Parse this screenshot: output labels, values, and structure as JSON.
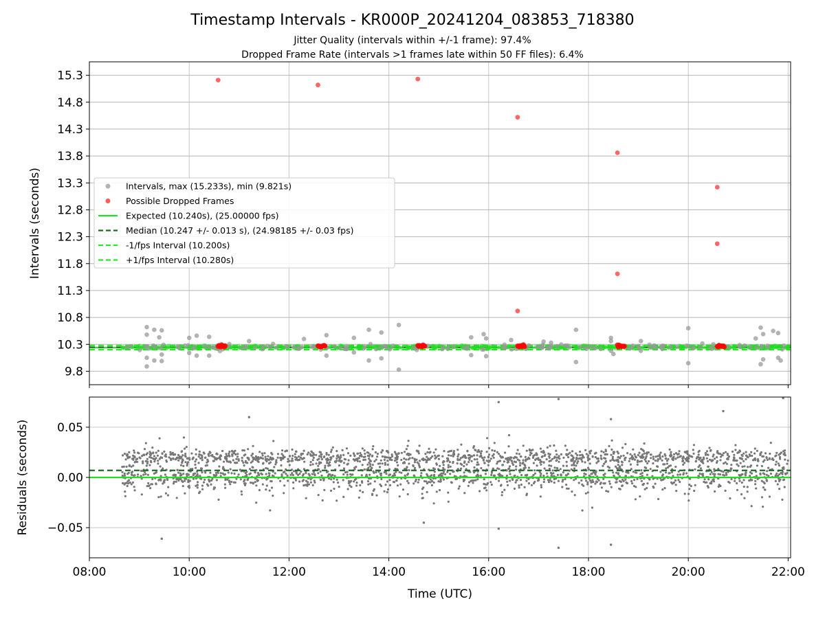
{
  "chart_data": [
    {
      "type": "scatter",
      "title": "Timestamp Intervals - KR000P_20241204_083853_718380",
      "subtitle_lines": [
        "Jitter Quality (intervals within +/-1 frame): 97.4%",
        "Dropped Frame Rate (intervals >1 frames late within 50 FF files): 6.4%"
      ],
      "xlabel": "",
      "ylabel": "Intervals (seconds)",
      "x_unit": "hours UTC",
      "xlim": [
        8.0,
        22.05
      ],
      "ylim": [
        9.55,
        15.55
      ],
      "yticks": [
        9.8,
        10.3,
        10.8,
        11.3,
        11.8,
        12.3,
        12.8,
        13.3,
        13.8,
        14.3,
        14.8,
        15.3
      ],
      "ytick_labels": [
        "9.8",
        "10.3",
        "10.8",
        "11.3",
        "11.8",
        "12.3",
        "12.8",
        "13.3",
        "13.8",
        "14.3",
        "14.8",
        "15.3"
      ],
      "grid": true,
      "legend_position": "center-left",
      "colors": {
        "intervals": "#999999",
        "dropped": "#ff3333",
        "expected": "#22dd22",
        "median": "#1a6b1a",
        "bounds": "#22ee22"
      },
      "series": [
        {
          "name": "Intervals, max (15.233s), min (9.821s)",
          "kind": "scatter",
          "x_range": [
            8.65,
            22.0
          ],
          "typical_y": 10.247,
          "outliers": [
            {
              "x": 9.15,
              "y": 10.62
            },
            {
              "x": 9.15,
              "y": 10.48
            },
            {
              "x": 9.15,
              "y": 10.05
            },
            {
              "x": 9.15,
              "y": 9.89
            },
            {
              "x": 9.3,
              "y": 10.57
            },
            {
              "x": 9.3,
              "y": 10.0
            },
            {
              "x": 9.4,
              "y": 10.43
            },
            {
              "x": 9.45,
              "y": 10.56
            },
            {
              "x": 9.45,
              "y": 10.11
            },
            {
              "x": 9.45,
              "y": 9.99
            },
            {
              "x": 10.0,
              "y": 10.42
            },
            {
              "x": 10.0,
              "y": 10.14
            },
            {
              "x": 10.15,
              "y": 10.46
            },
            {
              "x": 10.15,
              "y": 10.09
            },
            {
              "x": 10.4,
              "y": 10.44
            },
            {
              "x": 10.4,
              "y": 10.09
            },
            {
              "x": 11.2,
              "y": 10.36
            },
            {
              "x": 12.3,
              "y": 10.4
            },
            {
              "x": 12.75,
              "y": 10.47
            },
            {
              "x": 12.75,
              "y": 10.09
            },
            {
              "x": 13.3,
              "y": 10.42
            },
            {
              "x": 13.3,
              "y": 10.15
            },
            {
              "x": 13.6,
              "y": 10.57
            },
            {
              "x": 13.6,
              "y": 10.0
            },
            {
              "x": 13.85,
              "y": 10.52
            },
            {
              "x": 13.85,
              "y": 10.04
            },
            {
              "x": 14.2,
              "y": 10.66
            },
            {
              "x": 14.2,
              "y": 9.83
            },
            {
              "x": 15.65,
              "y": 10.43
            },
            {
              "x": 15.65,
              "y": 10.1
            },
            {
              "x": 15.9,
              "y": 10.49
            },
            {
              "x": 15.95,
              "y": 10.41
            },
            {
              "x": 15.95,
              "y": 10.08
            },
            {
              "x": 16.45,
              "y": 10.38
            },
            {
              "x": 17.1,
              "y": 10.35
            },
            {
              "x": 17.25,
              "y": 10.33
            },
            {
              "x": 17.75,
              "y": 10.57
            },
            {
              "x": 17.75,
              "y": 9.97
            },
            {
              "x": 18.45,
              "y": 10.42
            },
            {
              "x": 18.45,
              "y": 10.36
            },
            {
              "x": 18.45,
              "y": 10.18
            },
            {
              "x": 18.5,
              "y": 10.12
            },
            {
              "x": 19.05,
              "y": 10.36
            },
            {
              "x": 19.05,
              "y": 10.18
            },
            {
              "x": 20.0,
              "y": 10.6
            },
            {
              "x": 20.0,
              "y": 9.95
            },
            {
              "x": 20.5,
              "y": 10.3
            },
            {
              "x": 21.35,
              "y": 10.41
            },
            {
              "x": 21.45,
              "y": 10.61
            },
            {
              "x": 21.45,
              "y": 9.93
            },
            {
              "x": 21.5,
              "y": 10.49
            },
            {
              "x": 21.5,
              "y": 10.02
            },
            {
              "x": 21.7,
              "y": 10.55
            },
            {
              "x": 21.8,
              "y": 10.51
            },
            {
              "x": 21.8,
              "y": 10.05
            },
            {
              "x": 21.85,
              "y": 10.0
            }
          ]
        },
        {
          "name": "Possible Dropped Frames",
          "kind": "scatter",
          "points": [
            {
              "x": 10.58,
              "y": 15.21
            },
            {
              "x": 12.58,
              "y": 15.12
            },
            {
              "x": 14.58,
              "y": 15.23
            },
            {
              "x": 16.58,
              "y": 14.52
            },
            {
              "x": 18.58,
              "y": 13.86
            },
            {
              "x": 20.58,
              "y": 13.22
            },
            {
              "x": 20.58,
              "y": 12.17
            },
            {
              "x": 18.58,
              "y": 11.61
            },
            {
              "x": 16.58,
              "y": 10.92
            }
          ],
          "clusters": [
            {
              "x0": 10.58,
              "x1": 10.72,
              "y": 10.27
            },
            {
              "x0": 12.58,
              "x1": 12.72,
              "y": 10.27
            },
            {
              "x0": 14.58,
              "x1": 14.72,
              "y": 10.27
            },
            {
              "x0": 16.58,
              "x1": 16.72,
              "y": 10.27
            },
            {
              "x0": 18.58,
              "x1": 18.72,
              "y": 10.27
            },
            {
              "x0": 20.58,
              "x1": 20.72,
              "y": 10.27
            }
          ]
        },
        {
          "name": "Expected (10.240s), (25.00000 fps)",
          "kind": "hline",
          "y": 10.24,
          "style": "solid"
        },
        {
          "name": "Median (10.247 +/- 0.013 s), (24.98185 +/- 0.03 fps)",
          "kind": "hline",
          "y": 10.247,
          "style": "dashed"
        },
        {
          "name": "-1/fps Interval (10.200s)",
          "kind": "hline",
          "y": 10.2,
          "style": "dashed"
        },
        {
          "name": "+1/fps Interval (10.280s)",
          "kind": "hline",
          "y": 10.28,
          "style": "dashed"
        }
      ]
    },
    {
      "type": "scatter",
      "title": "",
      "xlabel": "Time (UTC)",
      "ylabel": "Residuals (seconds)",
      "xlim": [
        8.0,
        22.05
      ],
      "ylim": [
        -0.08,
        0.08
      ],
      "yticks": [
        -0.05,
        0.0,
        0.05
      ],
      "ytick_labels": [
        "−0.05",
        "0.00",
        "0.05"
      ],
      "xticks": [
        8,
        10,
        12,
        14,
        16,
        18,
        20,
        22
      ],
      "xtick_labels": [
        "08:00",
        "10:00",
        "12:00",
        "14:00",
        "16:00",
        "18:00",
        "20:00",
        "22:00"
      ],
      "grid": true,
      "series": [
        {
          "name": "",
          "kind": "scatter",
          "color": "#777777",
          "x_range": [
            8.65,
            22.0
          ],
          "y_spread": [
            -0.03,
            0.04
          ],
          "sample_count": 2400,
          "notable_points": [
            {
              "x": 9.45,
              "y": -0.061
            },
            {
              "x": 11.2,
              "y": 0.06
            },
            {
              "x": 14.7,
              "y": -0.045
            },
            {
              "x": 16.2,
              "y": 0.075
            },
            {
              "x": 16.2,
              "y": -0.051
            },
            {
              "x": 17.4,
              "y": 0.078
            },
            {
              "x": 17.4,
              "y": -0.07
            },
            {
              "x": 18.45,
              "y": -0.067
            },
            {
              "x": 18.45,
              "y": 0.058
            },
            {
              "x": 20.7,
              "y": 0.066
            },
            {
              "x": 21.9,
              "y": 0.079
            }
          ]
        },
        {
          "name": "",
          "kind": "hline",
          "y": 0.0,
          "style": "solid",
          "color": "#22dd22"
        },
        {
          "name": "",
          "kind": "hline",
          "y": 0.007,
          "style": "dashed",
          "color": "#1a6b1a"
        }
      ]
    }
  ]
}
